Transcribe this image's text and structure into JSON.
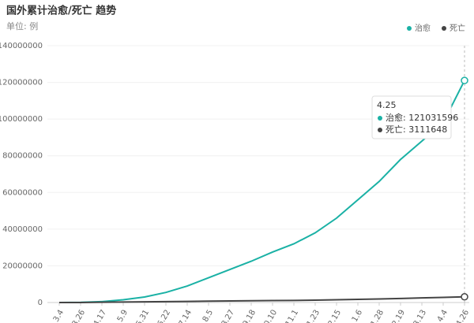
{
  "chart_data": {
    "type": "line",
    "title": "国外累计治愈/死亡 趋势",
    "subtitle": "单位: 例",
    "categories": [
      "3.4",
      "3.26",
      "4.17",
      "5.9",
      "5.31",
      "6.22",
      "7.14",
      "8.5",
      "8.27",
      "9.18",
      "10.10",
      "11.1",
      "11.23",
      "12.15",
      "1.6",
      "1.28",
      "2.19",
      "3.13",
      "4.4",
      "4.26"
    ],
    "series": [
      {
        "name": "治愈",
        "color": "#1ab1a5",
        "values": [
          0,
          100000,
          500000,
          1500000,
          3000000,
          5500000,
          9000000,
          13500000,
          18000000,
          22500000,
          27500000,
          32000000,
          38000000,
          46000000,
          56000000,
          66000000,
          78000000,
          88000000,
          98000000,
          121031596
        ]
      },
      {
        "name": "死亡",
        "color": "#444444",
        "values": [
          0,
          20000,
          150000,
          280000,
          400000,
          500000,
          600000,
          750000,
          850000,
          950000,
          1050000,
          1150000,
          1300000,
          1500000,
          1700000,
          1950000,
          2200000,
          2500000,
          2800000,
          3111648
        ]
      }
    ],
    "ylim": [
      0,
      140000000
    ],
    "yticks": [
      0,
      20000000,
      40000000,
      60000000,
      80000000,
      100000000,
      120000000,
      140000000
    ],
    "grid": true,
    "legend": "top-right",
    "tooltip": {
      "title": "4.25",
      "rows": [
        "治愈: 121031596",
        "死亡: 3111648"
      ]
    }
  }
}
